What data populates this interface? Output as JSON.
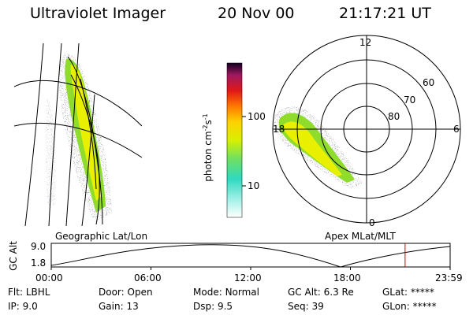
{
  "header": {
    "instrument": "Ultraviolet Imager",
    "date": "20 Nov 00",
    "time": "21:17:21 UT"
  },
  "colorbar": {
    "ticks": [
      "100",
      "10"
    ],
    "unit_label": "photon cm",
    "unit_exp1": "-2",
    "unit_s": "s",
    "unit_exp2": "-1"
  },
  "polar_plot": {
    "mlt_labels": {
      "top": "12",
      "left": "18",
      "right": "6",
      "bottom": "0"
    },
    "lat_labels": [
      "60",
      "70",
      "80"
    ]
  },
  "panel_labels": {
    "left": "Geographic Lat/Lon",
    "right": "Apex MLat/MLT"
  },
  "altitude_plot": {
    "ylabel": "GC Alt",
    "ymax_label": "9.0",
    "ymin_label": "1.8",
    "x_ticks": [
      "00:00",
      "06:00",
      "12:00",
      "18:00",
      "23:59"
    ],
    "current_time_hours": 21.29,
    "marker_color": "#cc0000"
  },
  "status": {
    "row1": [
      {
        "key": "Flt:",
        "value": "LBHL"
      },
      {
        "key": "Door:",
        "value": "Open"
      },
      {
        "key": "Mode:",
        "value": "Normal"
      },
      {
        "key": "GC Alt:",
        "value": "6.3 Re"
      },
      {
        "key": "GLat:",
        "value": "*****"
      }
    ],
    "row2": [
      {
        "key": "IP:",
        "value": "9.0"
      },
      {
        "key": "Gain:",
        "value": "13"
      },
      {
        "key": "Dsp:",
        "value": "9.5"
      },
      {
        "key": "Seq:",
        "value": "39"
      },
      {
        "key": "GLon:",
        "value": "*****"
      }
    ]
  }
}
